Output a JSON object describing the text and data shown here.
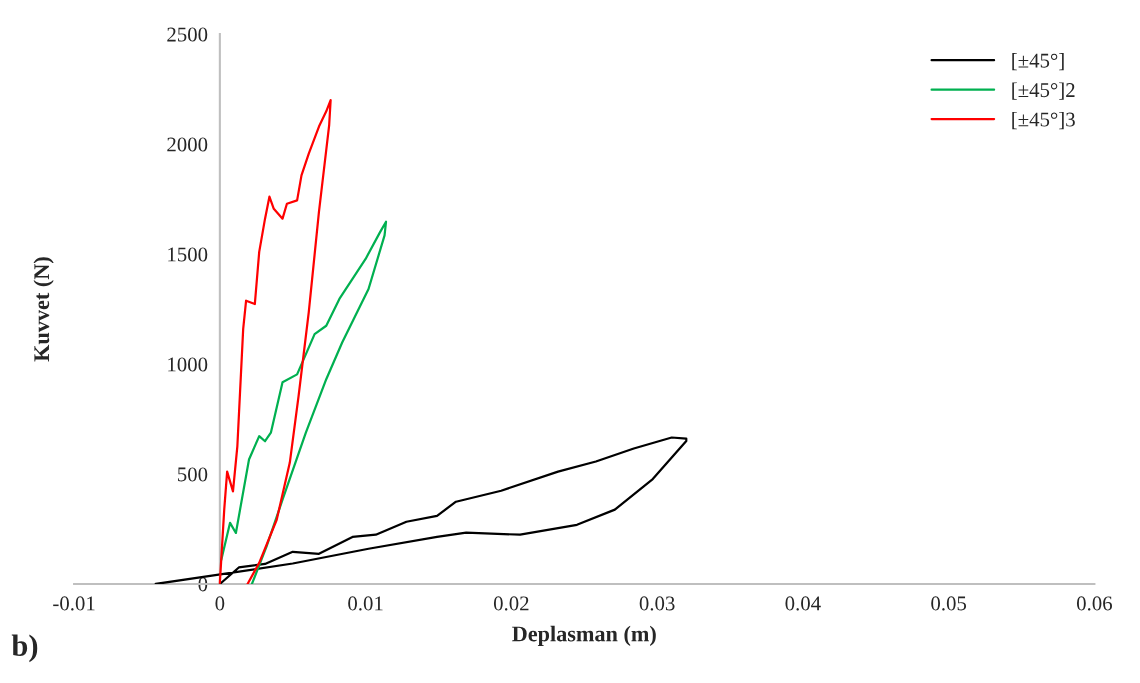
{
  "chart_data": {
    "type": "line",
    "xlabel": "Deplasman (m)",
    "ylabel": "Kuvvet (N)",
    "xlim": [
      -0.01,
      0.06
    ],
    "xticks": [
      -0.01,
      0,
      0.01,
      0.02,
      0.03,
      0.04,
      0.05,
      0.06
    ],
    "ylim": [
      0,
      2500
    ],
    "yticks": [
      0,
      500,
      1000,
      1500,
      2000,
      2500
    ],
    "grid": false,
    "legend": "top right",
    "marker": "none",
    "line_style": "solid",
    "annotations": [
      "b)"
    ],
    "series": [
      {
        "name": "[±45°]",
        "color": "#000000",
        "x": [
          0,
          0.0013,
          0.0031,
          0.005,
          0.0068,
          0.0091,
          0.0107,
          0.0128,
          0.0149,
          0.0162,
          0.0193,
          0.0232,
          0.0258,
          0.0284,
          0.031,
          0.032,
          0.032,
          0.0297,
          0.0271,
          0.0245,
          0.0206,
          0.0169,
          0.0149,
          0.0102,
          0.005,
          -0.0002,
          -0.0044
        ],
        "values": [
          0,
          75,
          91,
          146,
          137,
          214,
          224,
          283,
          310,
          374,
          424,
          511,
          557,
          616,
          666,
          661,
          650,
          477,
          338,
          269,
          224,
          233,
          214,
          160,
          93,
          41,
          0
        ]
      },
      {
        "name": "[±45°]2",
        "color": "#00b050",
        "x": [
          0.0001,
          0.0007,
          0.0011,
          0.002,
          0.0027,
          0.0031,
          0.0035,
          0.0043,
          0.0053,
          0.0065,
          0.0073,
          0.0082,
          0.0091,
          0.01,
          0.011,
          0.0114,
          0.0113,
          0.0102,
          0.0084,
          0.0073,
          0.0059,
          0.0043,
          0.0032,
          0.0022
        ],
        "values": [
          110,
          278,
          232,
          566,
          672,
          649,
          688,
          917,
          953,
          1136,
          1174,
          1296,
          1387,
          1478,
          1601,
          1647,
          1585,
          1341,
          1099,
          931,
          688,
          383,
          170,
          0
        ]
      },
      {
        "name": "[±45°]3",
        "color": "#ff0000",
        "x": [
          0,
          0.0003,
          0.0005,
          0.0009,
          0.0012,
          0.0016,
          0.0018,
          0.0024,
          0.0027,
          0.0031,
          0.0034,
          0.0037,
          0.0043,
          0.0046,
          0.0053,
          0.0056,
          0.0061,
          0.0068,
          0.0073,
          0.0076,
          0.0075,
          0.0068,
          0.0061,
          0.0054,
          0.0048,
          0.0039,
          0.0027,
          0.0019
        ],
        "values": [
          5,
          338,
          511,
          421,
          626,
          1159,
          1288,
          1273,
          1510,
          1661,
          1761,
          1706,
          1661,
          1729,
          1744,
          1858,
          1957,
          2080,
          2149,
          2200,
          2086,
          1693,
          1236,
          854,
          552,
          292,
          96,
          0
        ]
      }
    ]
  }
}
